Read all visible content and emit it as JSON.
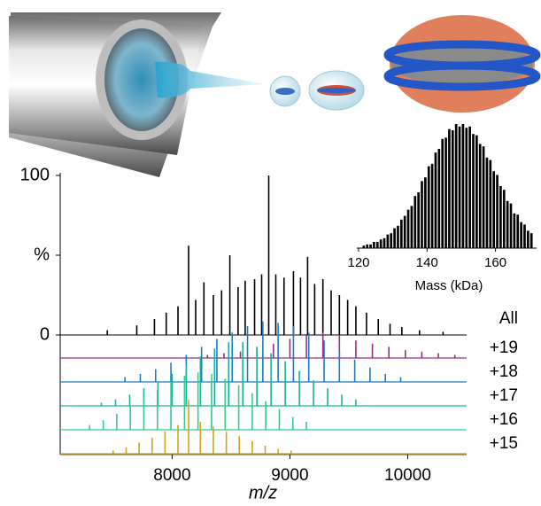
{
  "chart_data": [
    {
      "type": "stem",
      "xlabel": "m/z",
      "xlim": [
        7050,
        10500
      ],
      "xticks": [
        8000,
        9000,
        10000
      ],
      "ylim": [
        0,
        100
      ],
      "yticks": [
        0,
        {
          "value": 50,
          "label": "%"
        },
        100
      ],
      "series": [
        {
          "name": "All",
          "color": "#000000",
          "x": [
            7450,
            7700,
            7850,
            7950,
            8050,
            8140,
            8200,
            8270,
            8350,
            8420,
            8490,
            8560,
            8620,
            8700,
            8760,
            8820,
            8880,
            8950,
            9030,
            9090,
            9150,
            9210,
            9280,
            9350,
            9420,
            9490,
            9560,
            9650,
            9750,
            9850,
            9950,
            10100,
            10300
          ],
          "values": [
            3,
            6,
            10,
            14,
            18,
            56,
            22,
            33,
            25,
            28,
            50,
            30,
            34,
            35,
            38,
            100,
            38,
            36,
            40,
            36,
            49,
            32,
            35,
            28,
            25,
            22,
            18,
            14,
            10,
            7,
            5,
            3,
            2
          ]
        },
        {
          "name": "+19",
          "color": "#9c2a87",
          "x": [
            8300,
            8440,
            8580,
            8720,
            8860,
            9000,
            9140,
            9280,
            9420,
            9560,
            9700,
            9840,
            9980,
            10120,
            10260,
            10400
          ],
          "values": [
            2,
            3,
            4,
            6,
            9,
            12,
            15,
            16,
            14,
            11,
            9,
            7,
            5,
            4,
            3,
            2
          ]
        },
        {
          "name": "+18",
          "color": "#1b7dc0",
          "x": [
            7600,
            7730,
            7860,
            7990,
            8120,
            8250,
            8380,
            8510,
            8640,
            8770,
            8900,
            9030,
            9160,
            9290,
            9420,
            9550,
            9680,
            9810,
            9940
          ],
          "values": [
            3,
            5,
            8,
            12,
            17,
            22,
            27,
            31,
            35,
            38,
            37,
            35,
            31,
            26,
            20,
            14,
            9,
            5,
            3
          ]
        },
        {
          "name": "+17",
          "color": "#17b2a6",
          "x": [
            7400,
            7520,
            7640,
            7760,
            7880,
            8000,
            8120,
            8240,
            8360,
            8480,
            8600,
            8720,
            8840,
            8960,
            9080,
            9200,
            9320,
            9440,
            9560
          ],
          "values": [
            2,
            4,
            7,
            11,
            15,
            20,
            26,
            31,
            36,
            40,
            40,
            37,
            33,
            28,
            22,
            16,
            11,
            7,
            4
          ]
        },
        {
          "name": "+16",
          "color": "#33cc8a",
          "x": [
            7300,
            7415,
            7530,
            7645,
            7760,
            7875,
            7990,
            8105,
            8220,
            8335,
            8450,
            8565,
            8680,
            8795,
            8910,
            9025,
            9140
          ],
          "values": [
            3,
            6,
            10,
            15,
            20,
            25,
            30,
            34,
            36,
            35,
            32,
            28,
            23,
            18,
            13,
            8,
            5
          ]
        },
        {
          "name": "+15",
          "color": "#d4a21c",
          "x": [
            7500,
            7610,
            7720,
            7830,
            7940,
            8050,
            8140,
            8240,
            8350,
            8460,
            8570,
            8680,
            8790,
            8900,
            9010
          ],
          "values": [
            2,
            4,
            7,
            10,
            14,
            18,
            34,
            20,
            17,
            14,
            11,
            8,
            5,
            3,
            2
          ]
        }
      ]
    },
    {
      "type": "histogram",
      "xlabel": "Mass (kDa)",
      "xlim": [
        120,
        172
      ],
      "xticks": [
        120,
        140,
        160
      ],
      "color": "#000000",
      "bins": [
        121,
        122,
        123,
        124,
        125,
        126,
        127,
        128,
        129,
        130,
        131,
        132,
        133,
        134,
        135,
        136,
        137,
        138,
        139,
        140,
        141,
        142,
        143,
        144,
        145,
        146,
        147,
        148,
        149,
        150,
        151,
        152,
        153,
        154,
        155,
        156,
        157,
        158,
        159,
        160,
        161,
        162,
        163,
        164,
        165,
        166,
        167,
        168,
        169,
        170,
        171
      ],
      "values": [
        2,
        3,
        3,
        5,
        5,
        7,
        8,
        11,
        12,
        16,
        18,
        23,
        26,
        31,
        34,
        42,
        45,
        54,
        57,
        66,
        68,
        77,
        80,
        88,
        89,
        96,
        95,
        100,
        98,
        100,
        97,
        98,
        92,
        91,
        84,
        82,
        73,
        71,
        62,
        59,
        50,
        47,
        38,
        36,
        28,
        27,
        21,
        19,
        14,
        12
      ]
    }
  ]
}
